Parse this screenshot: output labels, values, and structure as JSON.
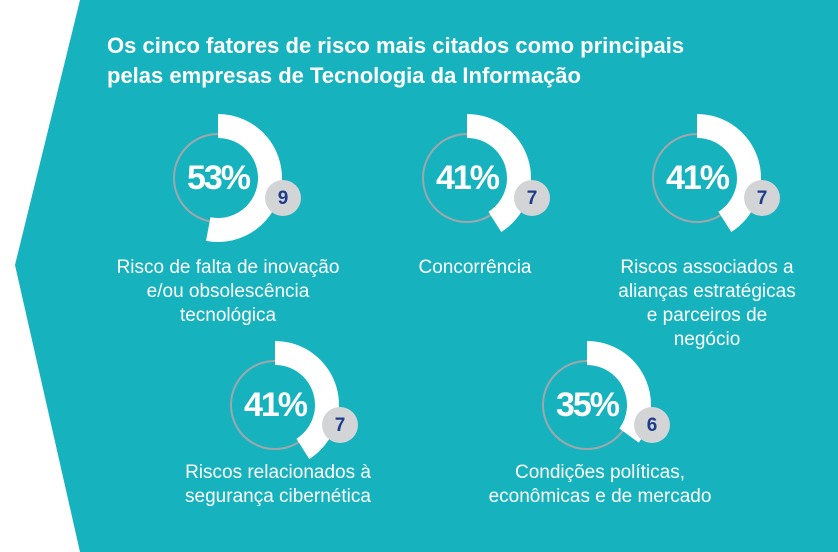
{
  "title": [
    "Os cinco fatores de risco mais citados como principais",
    "pelas empresas de Tecnologia da Informação"
  ],
  "items": [
    {
      "value": 53,
      "value_label": "53%",
      "rank": 9,
      "label": [
        "Risco de falta de inovação",
        "e/ou obsolescência",
        "tecnológica"
      ]
    },
    {
      "value": 41,
      "value_label": "41%",
      "rank": 7,
      "label": [
        "Concorrência"
      ]
    },
    {
      "value": 41,
      "value_label": "41%",
      "rank": 7,
      "label": [
        "Riscos associados a",
        "alianças estratégicas",
        "e parceiros de",
        "negócio"
      ]
    },
    {
      "value": 41,
      "value_label": "41%",
      "rank": 7,
      "label": [
        "Riscos relacionados à",
        "segurança cibernética"
      ]
    },
    {
      "value": 35,
      "value_label": "35%",
      "rank": 6,
      "label": [
        "Condições políticas,",
        "econômicas e de mercado"
      ]
    }
  ]
}
